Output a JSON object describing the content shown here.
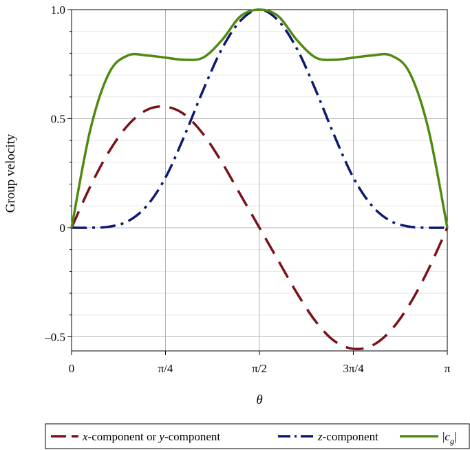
{
  "chart_data": {
    "type": "line",
    "xlabel": "θ",
    "ylabel": "Group velocity",
    "xlim": [
      0,
      3.14159265
    ],
    "ylim": [
      -0.55,
      1.0
    ],
    "grid": true,
    "legend_position": "bottom",
    "x_ticks": [
      {
        "value": 0,
        "label": "0"
      },
      {
        "value": 0.785398,
        "label": "π/4"
      },
      {
        "value": 1.570796,
        "label": "π/2"
      },
      {
        "value": 2.356194,
        "label": "3π/4"
      },
      {
        "value": 3.141593,
        "label": "π"
      }
    ],
    "y_ticks": [
      {
        "value": -0.5,
        "label": "–0.5"
      },
      {
        "value": 0,
        "label": "0"
      },
      {
        "value": 0.5,
        "label": "0.5"
      },
      {
        "value": 1.0,
        "label": "1.0"
      }
    ],
    "series": [
      {
        "name": "x-component or y-component",
        "legend": {
          "pre": "x",
          "mid": "-component or ",
          "pre2": "y",
          "post": "-component"
        },
        "color": "#7b0f1a",
        "style": "dashed",
        "x": [
          0,
          0.1571,
          0.3142,
          0.4712,
          0.6283,
          0.7854,
          0.9425,
          1.0996,
          1.2566,
          1.4137,
          1.5708,
          1.7279,
          1.885,
          2.042,
          2.1991,
          2.3562,
          2.5133,
          2.6704,
          2.8274,
          2.9845,
          3.1416
        ],
        "values": [
          0,
          0.19,
          0.35,
          0.47,
          0.54,
          0.555,
          0.52,
          0.43,
          0.3,
          0.15,
          0,
          -0.15,
          -0.3,
          -0.43,
          -0.52,
          -0.555,
          -0.54,
          -0.47,
          -0.35,
          -0.19,
          0
        ]
      },
      {
        "name": "z-component",
        "legend": {
          "pre": "z",
          "post": "-component"
        },
        "color": "#0d1870",
        "style": "dashdot",
        "x": [
          0,
          0.1571,
          0.3142,
          0.4712,
          0.6283,
          0.7854,
          0.9425,
          1.0996,
          1.2566,
          1.4137,
          1.5708,
          1.7279,
          1.885,
          2.042,
          2.1991,
          2.3562,
          2.5133,
          2.6704,
          2.8274,
          2.9845,
          3.1416
        ],
        "values": [
          0,
          0.0,
          0.005,
          0.03,
          0.1,
          0.23,
          0.42,
          0.63,
          0.82,
          0.95,
          1.0,
          0.95,
          0.82,
          0.63,
          0.42,
          0.23,
          0.1,
          0.03,
          0.005,
          0.0,
          0
        ]
      },
      {
        "name": "|c_g|",
        "legend": {
          "pre": "c",
          "sub": "g"
        },
        "color": "#4f8a10",
        "style": "solid",
        "x": [
          0,
          0.1571,
          0.3142,
          0.4712,
          0.6283,
          0.7854,
          0.9425,
          1.0996,
          1.2566,
          1.4137,
          1.5708,
          1.7279,
          1.885,
          2.042,
          2.1991,
          2.3562,
          2.5133,
          2.6704,
          2.8274,
          2.9845,
          3.1416
        ],
        "values": [
          0,
          0.45,
          0.71,
          0.79,
          0.79,
          0.78,
          0.77,
          0.78,
          0.86,
          0.97,
          1.0,
          0.97,
          0.86,
          0.78,
          0.77,
          0.78,
          0.79,
          0.79,
          0.71,
          0.45,
          0
        ]
      }
    ]
  }
}
